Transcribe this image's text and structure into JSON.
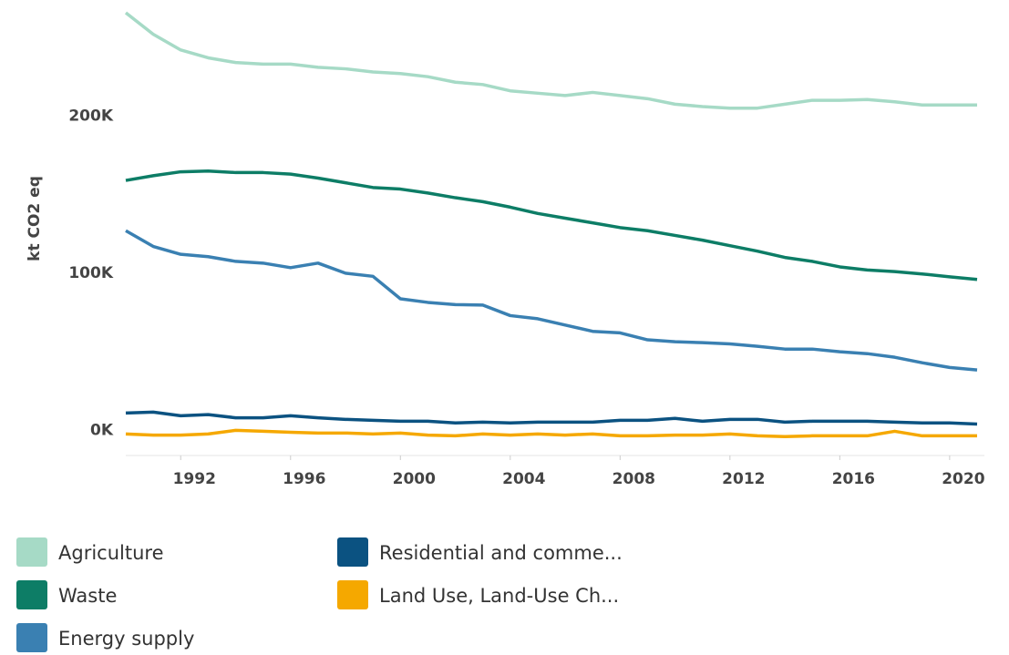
{
  "chart_data": {
    "type": "line",
    "y_label": "kt CO2 eq",
    "x": [
      1990,
      1991,
      1992,
      1993,
      1994,
      1995,
      1996,
      1997,
      1998,
      1999,
      2000,
      2001,
      2002,
      2003,
      2004,
      2005,
      2006,
      2007,
      2008,
      2009,
      2010,
      2011,
      2012,
      2013,
      2014,
      2015,
      2016,
      2017,
      2018,
      2019,
      2020,
      2021
    ],
    "xlim": [
      1990,
      2021
    ],
    "xticks": [
      1992,
      1996,
      2000,
      2004,
      2008,
      2012,
      2016,
      2020
    ],
    "ylim": [
      -16000,
      268000
    ],
    "yticks": [
      {
        "value": 0,
        "label": "0K"
      },
      {
        "value": 100000,
        "label": "100K"
      },
      {
        "value": 200000,
        "label": "200K"
      }
    ],
    "grid": false,
    "legend": "bottom",
    "series": [
      {
        "name": "Agriculture",
        "color": "#a6dac6",
        "values": [
          265700,
          252000,
          242000,
          237000,
          234000,
          233000,
          233000,
          231000,
          230000,
          228000,
          227000,
          225000,
          221500,
          220000,
          216000,
          214500,
          213000,
          215000,
          213000,
          211000,
          207500,
          206000,
          205000,
          205000,
          207500,
          210000,
          210000,
          210500,
          209000,
          207000,
          207000,
          207000
        ]
      },
      {
        "name": "Residential and comme...",
        "color": "#0b5281",
        "values": [
          11000,
          11600,
          9300,
          10000,
          8000,
          8000,
          9300,
          8000,
          7000,
          6400,
          5800,
          5800,
          4700,
          5200,
          4700,
          5200,
          5200,
          5200,
          6400,
          6400,
          7600,
          5800,
          7000,
          7000,
          5200,
          5800,
          5800,
          5800,
          5200,
          4700,
          4700,
          4000
        ]
      },
      {
        "name": "Waste",
        "color": "#0d7d66",
        "values": [
          159000,
          162000,
          164500,
          165000,
          164000,
          164000,
          163000,
          160500,
          157500,
          154500,
          153500,
          151000,
          148000,
          145500,
          142000,
          138000,
          135000,
          132000,
          129000,
          127000,
          124000,
          121000,
          117500,
          114000,
          110000,
          107500,
          104000,
          102000,
          101000,
          99500,
          97700,
          96000
        ]
      },
      {
        "name": "Land Use, Land-Use Ch...",
        "color": "#f5a800",
        "values": [
          -2300,
          -3000,
          -3000,
          -2300,
          0,
          -600,
          -1200,
          -1700,
          -1700,
          -2300,
          -1700,
          -3000,
          -3500,
          -2300,
          -3000,
          -2300,
          -3000,
          -2300,
          -3500,
          -3500,
          -3000,
          -3000,
          -2300,
          -3500,
          -4000,
          -3500,
          -3500,
          -3500,
          -600,
          -3500,
          -3500,
          -3500
        ]
      },
      {
        "name": "Energy supply",
        "color": "#3a80b2",
        "values": [
          127000,
          117000,
          112000,
          110500,
          107500,
          106400,
          103500,
          106400,
          100000,
          98000,
          83700,
          81400,
          80000,
          79700,
          73000,
          71000,
          67000,
          63000,
          62000,
          57600,
          56400,
          55800,
          55000,
          53500,
          51700,
          51700,
          50000,
          48800,
          46500,
          43000,
          40000,
          38400
        ]
      }
    ]
  }
}
